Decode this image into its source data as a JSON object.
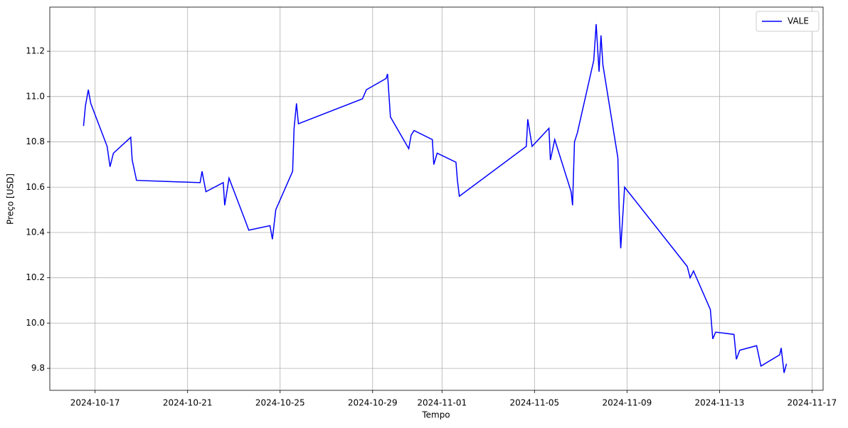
{
  "chart_data": {
    "type": "line",
    "x_label": "Tempo",
    "y_label": "Preço [USD]",
    "x": [
      "2024-10-16T12:00",
      "2024-10-16T14:00",
      "2024-10-16T17:00",
      "2024-10-16T19:30",
      "2024-10-17T12:30",
      "2024-10-17T15:30",
      "2024-10-17T19:00",
      "2024-10-18T13:00",
      "2024-10-18T14:30",
      "2024-10-18T19:00",
      "2024-10-21T13:00",
      "2024-10-21T15:00",
      "2024-10-21T19:00",
      "2024-10-22T13:00",
      "2024-10-22T14:30",
      "2024-10-22T19:00",
      "2024-10-23T12:00",
      "2024-10-23T15:30",
      "2024-10-24T13:30",
      "2024-10-24T16:00",
      "2024-10-24T19:30",
      "2024-10-25T13:00",
      "2024-10-25T14:30",
      "2024-10-25T17:00",
      "2024-10-25T19:00",
      "2024-10-28T13:30",
      "2024-10-28T17:30",
      "2024-10-29T14:00",
      "2024-10-29T15:30",
      "2024-10-29T18:30",
      "2024-10-30T13:30",
      "2024-10-30T16:00",
      "2024-10-30T19:00",
      "2024-10-31T14:00",
      "2024-10-31T15:30",
      "2024-10-31T19:00",
      "2024-11-01T14:30",
      "2024-11-01T16:00",
      "2024-11-01T18:00",
      "2024-11-04T15:30",
      "2024-11-04T17:00",
      "2024-11-04T21:30",
      "2024-11-05T15:00",
      "2024-11-05T16:30",
      "2024-11-05T21:00",
      "2024-11-06T14:00",
      "2024-11-06T15:30",
      "2024-11-06T17:30",
      "2024-11-06T20:30",
      "2024-11-07T13:30",
      "2024-11-07T16:00",
      "2024-11-07T19:00",
      "2024-11-07T21:00",
      "2024-11-07T23:00",
      "2024-11-08T14:30",
      "2024-11-08T16:00",
      "2024-11-08T17:30",
      "2024-11-08T21:30",
      "2024-11-11T14:30",
      "2024-11-11T17:30",
      "2024-11-11T21:00",
      "2024-11-12T14:30",
      "2024-11-12T17:00",
      "2024-11-12T20:00",
      "2024-11-13T15:00",
      "2024-11-13T17:30",
      "2024-11-13T21:00",
      "2024-11-14T14:30",
      "2024-11-14T19:00",
      "2024-11-15T14:30",
      "2024-11-15T16:00",
      "2024-11-15T19:00",
      "2024-11-15T21:30"
    ],
    "series": [
      {
        "name": "VALE",
        "color": "blue",
        "values": [
          10.87,
          10.96,
          11.03,
          10.97,
          10.78,
          10.69,
          10.75,
          10.82,
          10.72,
          10.63,
          10.62,
          10.67,
          10.58,
          10.62,
          10.52,
          10.64,
          10.45,
          10.41,
          10.43,
          10.37,
          10.5,
          10.67,
          10.86,
          10.97,
          10.88,
          10.99,
          11.03,
          11.08,
          11.1,
          10.91,
          10.77,
          10.83,
          10.85,
          10.81,
          10.7,
          10.75,
          10.71,
          10.63,
          10.56,
          10.78,
          10.9,
          10.78,
          10.86,
          10.72,
          10.81,
          10.58,
          10.52,
          10.8,
          10.84,
          11.16,
          11.32,
          11.11,
          11.27,
          11.14,
          10.73,
          10.48,
          10.33,
          10.6,
          10.25,
          10.2,
          10.23,
          10.06,
          9.93,
          9.96,
          9.95,
          9.84,
          9.88,
          9.9,
          9.81,
          9.86,
          9.89,
          9.78,
          9.82
        ]
      }
    ],
    "xlim": [
      "2024-10-15T01:00",
      "2024-11-17T11:30"
    ],
    "xticks": [
      "2024-10-17",
      "2024-10-21",
      "2024-10-25",
      "2024-10-29",
      "2024-11-01",
      "2024-11-05",
      "2024-11-09",
      "2024-11-13",
      "2024-11-17"
    ],
    "ylim": [
      9.703,
      11.395
    ],
    "yticks": [
      9.8,
      {
        "value": 10,
        "label": "10.0"
      },
      10.2,
      10.4,
      10.6,
      10.8,
      {
        "value": 11,
        "label": "11.0"
      },
      11.2
    ],
    "grid": true,
    "legend": "upper right"
  }
}
